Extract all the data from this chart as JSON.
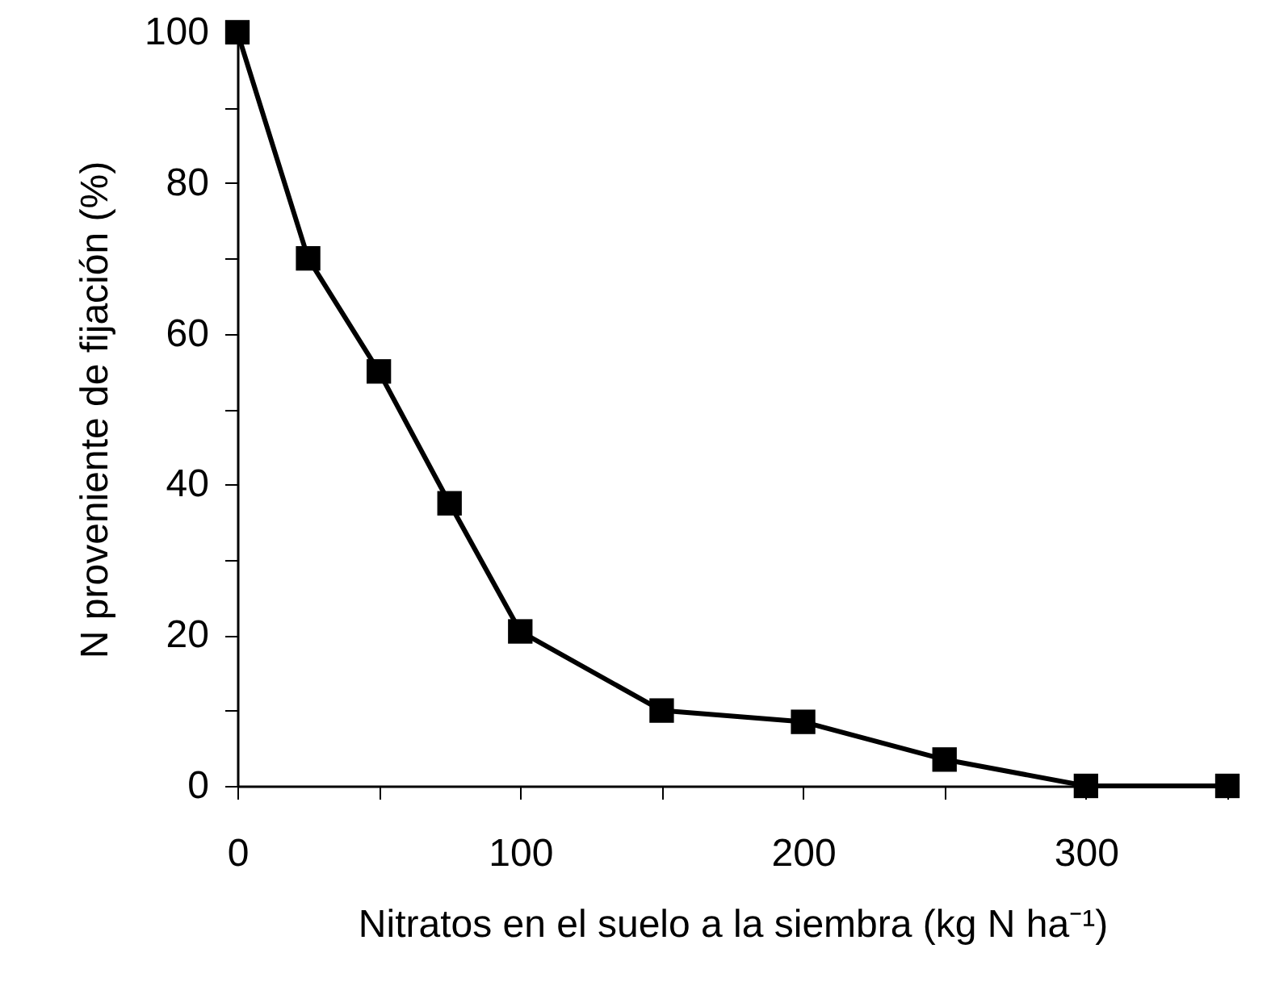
{
  "chart_data": {
    "type": "line",
    "xlabel": "Nitratos en el suelo a la siembra (kg N ha⁻¹)",
    "ylabel": "N proveniente de fijación (%)",
    "x": [
      0,
      25,
      50,
      75,
      100,
      150,
      200,
      250,
      300,
      350
    ],
    "series": [
      {
        "color": "#000000",
        "values": [
          100,
          70,
          55,
          37.5,
          20.5,
          10,
          8.5,
          3.5,
          0,
          0
        ]
      }
    ],
    "xlim": [
      0,
      350
    ],
    "xticks": [
      0,
      {
        "value": 50,
        "label": null
      },
      100,
      {
        "value": 150,
        "label": null
      },
      200,
      {
        "value": 250,
        "label": null
      },
      300,
      {
        "value": 350,
        "label": null
      }
    ],
    "ylim": [
      0,
      100
    ],
    "yticks": [
      0,
      {
        "value": 10,
        "label": null
      },
      20,
      {
        "value": 30,
        "label": null
      },
      40,
      {
        "value": 50,
        "label": null
      },
      60,
      {
        "value": 70,
        "label": null
      },
      80,
      {
        "value": 90,
        "label": null
      },
      100
    ],
    "marker": "square",
    "line_style": "solid"
  }
}
